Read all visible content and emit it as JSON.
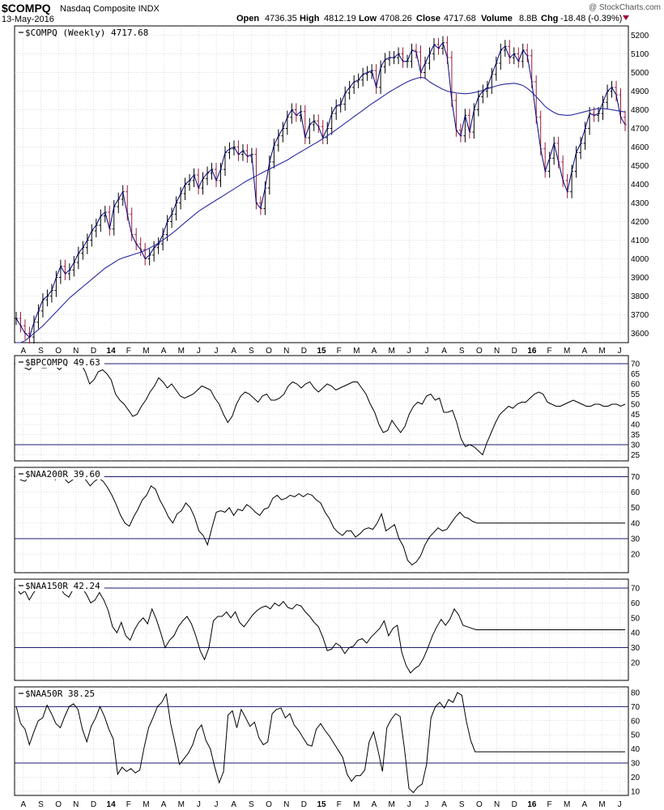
{
  "header": {
    "symbol": "$COMPQ",
    "name": "Nasdaq Composite INDX",
    "date": "13-May-2016",
    "watermark": "@ StockCharts.com",
    "open_label": "Open",
    "open": "4736.35",
    "high_label": "High",
    "high": "4812.19",
    "low_label": "Low",
    "low": "4708.26",
    "close_label": "Close",
    "close": "4717.68",
    "volume_label": "Volume",
    "volume": "8.8B",
    "chg_label": "Chg",
    "chg": "-18.48 (-0.39%)"
  },
  "months": [
    "A",
    "S",
    "O",
    "N",
    "D",
    "14",
    "F",
    "M",
    "A",
    "M",
    "J",
    "J",
    "A",
    "S",
    "O",
    "N",
    "D",
    "15",
    "F",
    "M",
    "A",
    "M",
    "J",
    "J",
    "A",
    "S",
    "O",
    "N",
    "D",
    "16",
    "F",
    "M",
    "A",
    "M",
    "J"
  ],
  "colors": {
    "price": "#00007a",
    "ma": "#2a2aa0",
    "down": "#9b1c3c",
    "up": "#000000",
    "grid": "#bdbdbd",
    "ref": "#1c1c6e",
    "chg": "#a0003c"
  },
  "chart_data": [
    {
      "type": "candlestick",
      "label": "$COMPQ (Weekly) 4717.68",
      "ylim": [
        3550,
        5250
      ],
      "yticks": [
        3600,
        3700,
        3800,
        3900,
        4000,
        4100,
        4200,
        4300,
        4400,
        4500,
        4600,
        4700,
        4800,
        4900,
        5000,
        5100,
        5200
      ],
      "close": [
        3680,
        3640,
        3600,
        3580,
        3660,
        3720,
        3780,
        3800,
        3830,
        3900,
        3960,
        3920,
        3940,
        3980,
        4030,
        4060,
        4100,
        4150,
        4180,
        4230,
        4250,
        4160,
        4280,
        4320,
        4360,
        4240,
        4130,
        4080,
        4050,
        4000,
        4020,
        4060,
        4080,
        4130,
        4200,
        4240,
        4300,
        4350,
        4400,
        4420,
        4450,
        4380,
        4430,
        4460,
        4480,
        4420,
        4480,
        4570,
        4590,
        4600,
        4560,
        4580,
        4550,
        4560,
        4300,
        4270,
        4380,
        4520,
        4610,
        4660,
        4700,
        4760,
        4800,
        4770,
        4790,
        4650,
        4720,
        4740,
        4710,
        4650,
        4700,
        4780,
        4820,
        4830,
        4890,
        4920,
        4950,
        4960,
        4990,
        5000,
        5010,
        4920,
        5030,
        5070,
        5080,
        5080,
        5100,
        5060,
        5060,
        5120,
        5110,
        5000,
        5050,
        5100,
        5150,
        5130,
        5160,
        5080,
        4850,
        4690,
        4660,
        4770,
        4680,
        4800,
        4870,
        4900,
        4920,
        4990,
        5050,
        5120,
        5140,
        5080,
        5100,
        5060,
        5120,
        5090,
        4950,
        4760,
        4590,
        4470,
        4540,
        4620,
        4520,
        4420,
        4360,
        4470,
        4570,
        4620,
        4700,
        4780,
        4770,
        4780,
        4840,
        4900,
        4920,
        4880,
        4760,
        4720
      ],
      "ma": [
        3520,
        3540,
        3560,
        3580,
        3600,
        3620,
        3640,
        3665,
        3690,
        3715,
        3740,
        3765,
        3790,
        3810,
        3830,
        3850,
        3870,
        3890,
        3910,
        3930,
        3950,
        3965,
        3980,
        3995,
        4005,
        4012,
        4020,
        4028,
        4035,
        4045,
        4058,
        4070,
        4085,
        4100,
        4118,
        4135,
        4155,
        4175,
        4195,
        4215,
        4235,
        4255,
        4270,
        4285,
        4300,
        4315,
        4330,
        4345,
        4360,
        4375,
        4390,
        4405,
        4420,
        4432,
        4445,
        4458,
        4470,
        4482,
        4494,
        4506,
        4518,
        4530,
        4545,
        4560,
        4574,
        4588,
        4602,
        4616,
        4630,
        4645,
        4660,
        4676,
        4693,
        4710,
        4728,
        4745,
        4763,
        4780,
        4797,
        4815,
        4832,
        4848,
        4864,
        4880,
        4896,
        4910,
        4924,
        4937,
        4950,
        4960,
        4968,
        4975,
        4970,
        4950,
        4935,
        4922,
        4910,
        4900,
        4895,
        4890,
        4888,
        4886,
        4888,
        4892,
        4898,
        4904,
        4912,
        4920,
        4928,
        4934,
        4938,
        4940,
        4942,
        4938,
        4930,
        4915,
        4895,
        4870,
        4845,
        4818,
        4800,
        4785,
        4775,
        4772,
        4770,
        4772,
        4778,
        4784,
        4790,
        4796,
        4802,
        4806,
        4806,
        4804,
        4800,
        4796,
        4792,
        4788
      ]
    },
    {
      "type": "line",
      "label": "$BPCOMPQ 49.63",
      "ylim": [
        22,
        74
      ],
      "yticks": [
        25,
        30,
        35,
        40,
        45,
        50,
        55,
        60,
        65,
        70
      ],
      "reflines": [
        70,
        30
      ],
      "values": [
        70,
        69,
        68,
        67,
        69,
        70,
        68,
        68,
        70,
        69,
        67,
        69,
        71,
        70,
        72,
        70,
        66,
        60,
        62,
        66,
        67,
        65,
        62,
        55,
        52,
        50,
        47,
        44,
        45,
        49,
        52,
        56,
        59,
        63,
        61,
        58,
        60,
        57,
        54,
        53,
        54,
        55,
        57,
        59,
        58,
        57,
        53,
        50,
        45,
        41,
        44,
        50,
        54,
        56,
        55,
        53,
        51,
        54,
        55,
        52,
        52,
        53,
        55,
        59,
        61,
        60,
        58,
        60,
        61,
        58,
        56,
        58,
        60,
        59,
        57,
        58,
        59,
        60,
        61,
        61,
        58,
        55,
        50,
        46,
        40,
        36,
        37,
        42,
        39,
        36,
        39,
        45,
        49,
        51,
        50,
        54,
        55,
        52,
        53,
        46,
        46,
        47,
        41,
        33,
        29,
        30,
        29,
        27,
        25,
        31,
        36,
        41,
        45,
        47,
        49,
        48,
        50,
        51,
        51,
        53,
        55,
        56,
        55,
        51,
        50,
        49,
        49,
        50,
        51,
        52,
        51,
        50,
        49,
        49,
        50,
        50,
        49,
        49,
        50,
        50,
        49,
        50
      ]
    },
    {
      "type": "line",
      "label": "$NAA200R 39.60",
      "ylim": [
        8,
        76
      ],
      "yticks": [
        20,
        30,
        40,
        50,
        60,
        70
      ],
      "reflines": [
        70,
        30
      ],
      "values": [
        70,
        68,
        67,
        70,
        69,
        71,
        69,
        70,
        71,
        68,
        70,
        69,
        66,
        68,
        71,
        70,
        68,
        64,
        67,
        69,
        67,
        63,
        58,
        52,
        45,
        40,
        38,
        44,
        49,
        55,
        58,
        64,
        62,
        55,
        50,
        44,
        40,
        46,
        48,
        53,
        50,
        44,
        35,
        32,
        26,
        37,
        47,
        48,
        47,
        50,
        45,
        49,
        48,
        52,
        50,
        47,
        45,
        49,
        50,
        56,
        58,
        55,
        56,
        58,
        57,
        59,
        57,
        59,
        58,
        55,
        53,
        47,
        43,
        37,
        34,
        32,
        35,
        35,
        31,
        33,
        36,
        37,
        36,
        40,
        46,
        35,
        37,
        39,
        30,
        25,
        16,
        13,
        15,
        19,
        26,
        31,
        34,
        37,
        35,
        36,
        40,
        44,
        47,
        44,
        43,
        41,
        40,
        40,
        40,
        40,
        40,
        40,
        40,
        40,
        40,
        40,
        40,
        40,
        40,
        40,
        40,
        40,
        40,
        40,
        40,
        40,
        40,
        40,
        40,
        40,
        40,
        40,
        40,
        40,
        40,
        40,
        40,
        40,
        40,
        40,
        40
      ]
    },
    {
      "type": "line",
      "label": "$NAA150R 42.24",
      "ylim": [
        8,
        76
      ],
      "yticks": [
        20,
        30,
        40,
        50,
        60,
        70
      ],
      "reflines": [
        70,
        30
      ],
      "values": [
        70,
        66,
        68,
        62,
        67,
        70,
        68,
        70,
        71,
        68,
        70,
        66,
        64,
        69,
        71,
        70,
        66,
        60,
        62,
        67,
        62,
        55,
        44,
        40,
        47,
        38,
        35,
        42,
        47,
        50,
        46,
        56,
        49,
        40,
        30,
        35,
        38,
        44,
        48,
        51,
        46,
        38,
        28,
        22,
        30,
        48,
        51,
        51,
        54,
        50,
        54,
        47,
        44,
        48,
        52,
        55,
        57,
        58,
        56,
        60,
        58,
        61,
        57,
        56,
        59,
        58,
        54,
        51,
        47,
        44,
        37,
        28,
        29,
        33,
        31,
        26,
        30,
        31,
        35,
        36,
        33,
        37,
        40,
        43,
        48,
        38,
        43,
        45,
        27,
        18,
        13,
        16,
        18,
        23,
        30,
        38,
        44,
        49,
        45,
        49,
        56,
        52,
        45,
        44,
        43,
        42,
        42,
        42,
        42,
        42,
        42,
        42,
        42,
        42,
        42,
        42,
        42,
        42,
        42,
        42,
        42,
        42,
        42,
        42,
        42,
        42,
        42,
        42,
        42,
        42,
        42,
        42,
        42,
        42,
        42,
        42,
        42,
        42,
        42,
        42
      ]
    },
    {
      "type": "line",
      "label": "$NAA50R 38.25",
      "ylim": [
        7,
        84
      ],
      "yticks": [
        10,
        20,
        30,
        40,
        50,
        60,
        70,
        80
      ],
      "reflines": [
        70,
        30
      ],
      "values": [
        70,
        58,
        54,
        43,
        52,
        60,
        62,
        71,
        65,
        58,
        55,
        63,
        70,
        72,
        68,
        54,
        45,
        56,
        62,
        70,
        63,
        54,
        47,
        22,
        27,
        24,
        26,
        23,
        25,
        41,
        55,
        62,
        70,
        73,
        79,
        58,
        44,
        29,
        33,
        37,
        43,
        53,
        57,
        46,
        40,
        27,
        16,
        24,
        64,
        67,
        55,
        68,
        62,
        56,
        59,
        48,
        43,
        45,
        65,
        68,
        69,
        62,
        65,
        57,
        53,
        48,
        43,
        42,
        54,
        58,
        53,
        49,
        44,
        39,
        34,
        22,
        17,
        21,
        21,
        25,
        45,
        52,
        39,
        24,
        55,
        61,
        65,
        63,
        40,
        12,
        9,
        13,
        15,
        29,
        62,
        70,
        73,
        69,
        75,
        73,
        80,
        78,
        60,
        46,
        38,
        38,
        38,
        38,
        38,
        38,
        38,
        38,
        38,
        38,
        38,
        38,
        38,
        38,
        38,
        38,
        38,
        38,
        38,
        38,
        38,
        38,
        38,
        38,
        38,
        38,
        38,
        38,
        38,
        38,
        38,
        38,
        38,
        38,
        38
      ]
    }
  ]
}
